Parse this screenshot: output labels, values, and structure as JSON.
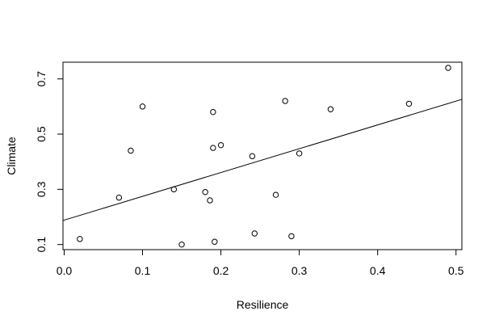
{
  "chart_data": {
    "type": "scatter",
    "title": "",
    "xlabel": "Resilience",
    "ylabel": "Climate",
    "xlim": [
      -0.0015,
      0.5075
    ],
    "ylim": [
      0.0815,
      0.7605
    ],
    "x_ticks": [
      0.0,
      0.1,
      0.2,
      0.3,
      0.4,
      0.5
    ],
    "x_tick_labels": [
      "0.0",
      "0.1",
      "0.2",
      "0.3",
      "0.4",
      "0.5"
    ],
    "y_ticks": [
      0.1,
      0.3,
      0.5,
      0.7
    ],
    "y_tick_labels": [
      "0.1",
      "0.3",
      "0.5",
      "0.7"
    ],
    "grid": false,
    "legend": "none",
    "points": [
      {
        "x": 0.02,
        "y": 0.12
      },
      {
        "x": 0.07,
        "y": 0.27
      },
      {
        "x": 0.085,
        "y": 0.44
      },
      {
        "x": 0.1,
        "y": 0.6
      },
      {
        "x": 0.14,
        "y": 0.3
      },
      {
        "x": 0.15,
        "y": 0.1
      },
      {
        "x": 0.18,
        "y": 0.29
      },
      {
        "x": 0.186,
        "y": 0.26
      },
      {
        "x": 0.19,
        "y": 0.58
      },
      {
        "x": 0.19,
        "y": 0.45
      },
      {
        "x": 0.192,
        "y": 0.11
      },
      {
        "x": 0.2,
        "y": 0.46
      },
      {
        "x": 0.24,
        "y": 0.42
      },
      {
        "x": 0.243,
        "y": 0.14
      },
      {
        "x": 0.27,
        "y": 0.28
      },
      {
        "x": 0.282,
        "y": 0.62
      },
      {
        "x": 0.29,
        "y": 0.13
      },
      {
        "x": 0.3,
        "y": 0.43
      },
      {
        "x": 0.34,
        "y": 0.59
      },
      {
        "x": 0.44,
        "y": 0.61
      },
      {
        "x": 0.49,
        "y": 0.74
      }
    ],
    "regression_line": {
      "x": [
        -0.0015,
        0.5075
      ],
      "y": [
        0.187,
        0.626
      ]
    },
    "colors": {
      "points": "#000000",
      "line": "#000000",
      "axes": "#000000",
      "background": "#ffffff"
    }
  }
}
